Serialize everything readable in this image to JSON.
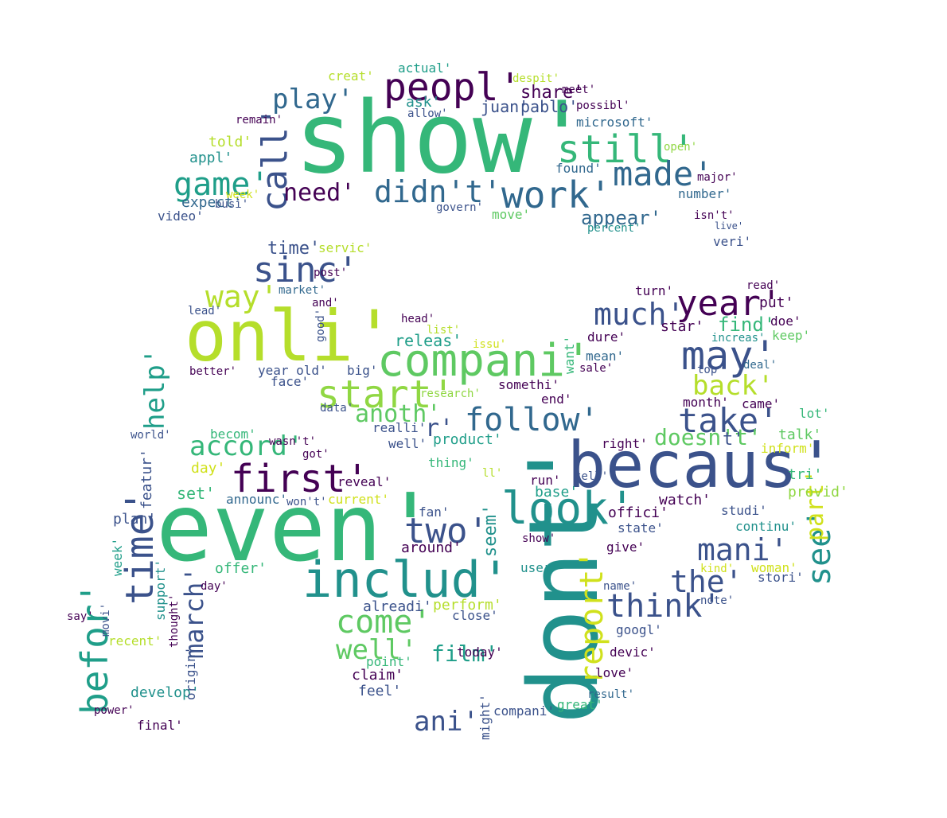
{
  "palette": {
    "dark_purple": "#440154",
    "indigo": "#3b528b",
    "blue": "#31688e",
    "teal": "#21918c",
    "teal_dark": "#1f9e89",
    "green": "#35b779",
    "green_light": "#5ec962",
    "lime": "#90d743",
    "yellow_green": "#b5de2b",
    "yellow": "#d0e11c",
    "background": "#ffffff"
  },
  "words": [
    {
      "text": "show'",
      "color": "#35b779"
    },
    {
      "text": "even'",
      "color": "#35b779"
    },
    {
      "text": "becaus'",
      "color": "#3b528b"
    },
    {
      "text": "dont'",
      "color": "#21918c"
    },
    {
      "text": "onli'",
      "color": "#b5de2b"
    },
    {
      "text": "compani'",
      "color": "#5ec962"
    },
    {
      "text": "includ'",
      "color": "#21918c"
    },
    {
      "text": "peopl'",
      "color": "#440154"
    },
    {
      "text": "still'",
      "color": "#35b779"
    },
    {
      "text": "work'",
      "color": "#31688e"
    },
    {
      "text": "made'",
      "color": "#31688e"
    },
    {
      "text": "call'",
      "color": "#3b528b"
    },
    {
      "text": "didn't'",
      "color": "#31688e"
    },
    {
      "text": "game'",
      "color": "#1f9e89"
    },
    {
      "text": "need'",
      "color": "#440154"
    },
    {
      "text": "play'",
      "color": "#31688e"
    },
    {
      "text": "sinc'",
      "color": "#3b528b"
    },
    {
      "text": "way'",
      "color": "#b5de2b"
    },
    {
      "text": "year'",
      "color": "#440154"
    },
    {
      "text": "may'",
      "color": "#3b528b"
    },
    {
      "text": "much'",
      "color": "#3b528b"
    },
    {
      "text": "start'",
      "color": "#90d743"
    },
    {
      "text": "follow'",
      "color": "#31688e"
    },
    {
      "text": "take'",
      "color": "#3b528b"
    },
    {
      "text": "back'",
      "color": "#b5de2b"
    },
    {
      "text": "first'",
      "color": "#440154"
    },
    {
      "text": "look'",
      "color": "#21918c"
    },
    {
      "text": "two'",
      "color": "#3b528b"
    },
    {
      "text": "mani'",
      "color": "#3b528b"
    },
    {
      "text": "see'",
      "color": "#21918c"
    },
    {
      "text": "the'",
      "color": "#3b528b"
    },
    {
      "text": "think'",
      "color": "#3b528b"
    },
    {
      "text": "report'",
      "color": "#d0e11c"
    },
    {
      "text": "come'",
      "color": "#5ec962"
    },
    {
      "text": "well'",
      "color": "#5ec962"
    },
    {
      "text": "film'",
      "color": "#1f9e89"
    },
    {
      "text": "time'",
      "color": "#3b528b"
    },
    {
      "text": "befor'",
      "color": "#1f9e89"
    },
    {
      "text": "help'",
      "color": "#1f9e89"
    },
    {
      "text": "accord'",
      "color": "#35b779"
    },
    {
      "text": "anoth'",
      "color": "#5ec962"
    },
    {
      "text": "ani'",
      "color": "#3b528b"
    },
    {
      "text": "march'",
      "color": "#3b528b"
    },
    {
      "text": "part'",
      "color": "#d0e11c"
    },
    {
      "text": "doesn't'",
      "color": "#5ec962"
    },
    {
      "text": "find'",
      "color": "#35b779"
    },
    {
      "text": "appear'",
      "color": "#31688e"
    },
    {
      "text": "share'",
      "color": "#440154"
    },
    {
      "text": "juan'",
      "color": "#3b528b"
    },
    {
      "text": "pablo'",
      "color": "#3b528b"
    },
    {
      "text": "actual'",
      "color": "#1f9e89"
    },
    {
      "text": "microsoft'",
      "color": "#31688e"
    },
    {
      "text": "told'",
      "color": "#b5de2b"
    },
    {
      "text": "appl'",
      "color": "#21918c"
    },
    {
      "text": "expect'",
      "color": "#31688e"
    },
    {
      "text": "busi'",
      "color": "#3b528b"
    },
    {
      "text": "video'",
      "color": "#3b528b"
    },
    {
      "text": "week'",
      "color": "#d0e11c"
    },
    {
      "text": "found'",
      "color": "#31688e"
    },
    {
      "text": "number'",
      "color": "#31688e"
    },
    {
      "text": "isn't'",
      "color": "#440154"
    },
    {
      "text": "veri'",
      "color": "#3b528b"
    },
    {
      "text": "live'",
      "color": "#3b528b"
    },
    {
      "text": "percent'",
      "color": "#21918c"
    },
    {
      "text": "move'",
      "color": "#5ec962"
    },
    {
      "text": "govern'",
      "color": "#3b528b"
    },
    {
      "text": "market'",
      "color": "#31688e"
    },
    {
      "text": "lead'",
      "color": "#3b528b"
    },
    {
      "text": "head'",
      "color": "#440154"
    },
    {
      "text": "releas'",
      "color": "#1f9e89"
    },
    {
      "text": "issu'",
      "color": "#d0e11c"
    },
    {
      "text": "year old'",
      "color": "#3b528b"
    },
    {
      "text": "research'",
      "color": "#90d743"
    },
    {
      "text": "realli'",
      "color": "#3b528b"
    },
    {
      "text": "product'",
      "color": "#1f9e89"
    },
    {
      "text": "thing'",
      "color": "#35b779"
    },
    {
      "text": "reveal'",
      "color": "#440154"
    },
    {
      "text": "current'",
      "color": "#d0e11c"
    },
    {
      "text": "announc'",
      "color": "#31688e"
    },
    {
      "text": "won't'",
      "color": "#3b528b"
    },
    {
      "text": "set'",
      "color": "#35b779"
    },
    {
      "text": "day'",
      "color": "#d0e11c"
    },
    {
      "text": "plan'",
      "color": "#3b528b"
    },
    {
      "text": "offer'",
      "color": "#35b779"
    },
    {
      "text": "support'",
      "color": "#21918c"
    },
    {
      "text": "week'",
      "color": "#1f9e89"
    },
    {
      "text": "recent'",
      "color": "#b5de2b"
    },
    {
      "text": "develop'",
      "color": "#21918c"
    },
    {
      "text": "final'",
      "color": "#440154"
    },
    {
      "text": "power'",
      "color": "#440154"
    },
    {
      "text": "movi'",
      "color": "#3b528b"
    },
    {
      "text": "origin'",
      "color": "#3b528b"
    },
    {
      "text": "thought'",
      "color": "#440154"
    },
    {
      "text": "around'",
      "color": "#440154"
    },
    {
      "text": "alreadi'",
      "color": "#3b528b"
    },
    {
      "text": "perform'",
      "color": "#b5de2b"
    },
    {
      "text": "close'",
      "color": "#3b528b"
    },
    {
      "text": "point'",
      "color": "#35b779"
    },
    {
      "text": "claim'",
      "color": "#440154"
    },
    {
      "text": "feel'",
      "color": "#3b528b"
    },
    {
      "text": "today'",
      "color": "#440154"
    },
    {
      "text": "compani'",
      "color": "#3b528b"
    },
    {
      "text": "great'",
      "color": "#35b779"
    },
    {
      "text": "result'",
      "color": "#31688e"
    },
    {
      "text": "love'",
      "color": "#440154"
    },
    {
      "text": "devic'",
      "color": "#440154"
    },
    {
      "text": "googl'",
      "color": "#3b528b"
    },
    {
      "text": "name'",
      "color": "#3b528b"
    },
    {
      "text": "stori'",
      "color": "#3b528b"
    },
    {
      "text": "woman'",
      "color": "#d0e11c"
    },
    {
      "text": "kind'",
      "color": "#d0e11c"
    },
    {
      "text": "note'",
      "color": "#3b528b"
    },
    {
      "text": "state'",
      "color": "#3b528b"
    },
    {
      "text": "continu'",
      "color": "#21918c"
    },
    {
      "text": "offici'",
      "color": "#440154"
    },
    {
      "text": "watch'",
      "color": "#440154"
    },
    {
      "text": "studi'",
      "color": "#3b528b"
    },
    {
      "text": "provid'",
      "color": "#90d743"
    },
    {
      "text": "tri'",
      "color": "#35b779"
    },
    {
      "text": "talk'",
      "color": "#5ec962"
    },
    {
      "text": "inform'",
      "color": "#d0e11c"
    },
    {
      "text": "came'",
      "color": "#440154"
    },
    {
      "text": "lot'",
      "color": "#35b779"
    },
    {
      "text": "month'",
      "color": "#440154"
    },
    {
      "text": "top'",
      "color": "#3b528b"
    },
    {
      "text": "deal'",
      "color": "#31688e"
    },
    {
      "text": "increas'",
      "color": "#21918c"
    },
    {
      "text": "keep'",
      "color": "#5ec962"
    },
    {
      "text": "doe'",
      "color": "#440154"
    },
    {
      "text": "star'",
      "color": "#440154"
    },
    {
      "text": "put'",
      "color": "#440154"
    },
    {
      "text": "read'",
      "color": "#440154"
    },
    {
      "text": "turn'",
      "color": "#440154"
    },
    {
      "text": "dure'",
      "color": "#440154"
    },
    {
      "text": "mean'",
      "color": "#31688e"
    },
    {
      "text": "sale'",
      "color": "#440154"
    },
    {
      "text": "end'",
      "color": "#440154"
    },
    {
      "text": "somethi'",
      "color": "#440154"
    },
    {
      "text": "want'",
      "color": "#35b779"
    },
    {
      "text": "run'",
      "color": "#440154"
    },
    {
      "text": "base'",
      "color": "#1f9e89"
    },
    {
      "text": "fan'",
      "color": "#3b528b"
    },
    {
      "text": "seem'",
      "color": "#21918c"
    },
    {
      "text": "user'",
      "color": "#21918c"
    },
    {
      "text": "give'",
      "color": "#440154"
    },
    {
      "text": "show'",
      "color": "#440154"
    },
    {
      "text": "right'",
      "color": "#440154"
    },
    {
      "text": "tell'",
      "color": "#3b528b"
    },
    {
      "text": "servic'",
      "color": "#b5de2b"
    },
    {
      "text": "post'",
      "color": "#440154"
    },
    {
      "text": "time'",
      "color": "#3b528b"
    },
    {
      "text": "list'",
      "color": "#b5de2b"
    },
    {
      "text": "big'",
      "color": "#3b528b"
    },
    {
      "text": "face'",
      "color": "#3b528b"
    },
    {
      "text": "better'",
      "color": "#440154"
    },
    {
      "text": "world'",
      "color": "#3b528b"
    },
    {
      "text": "becom'",
      "color": "#35b779"
    },
    {
      "text": "got'",
      "color": "#440154"
    },
    {
      "text": "wasn't'",
      "color": "#440154"
    },
    {
      "text": "featur'",
      "color": "#3b528b"
    },
    {
      "text": "data'",
      "color": "#3b528b"
    },
    {
      "text": "well'",
      "color": "#3b528b"
    },
    {
      "text": "remain'",
      "color": "#440154"
    },
    {
      "text": "creat'",
      "color": "#b5de2b"
    },
    {
      "text": "ask'",
      "color": "#21918c"
    },
    {
      "text": "allow'",
      "color": "#3b528b"
    },
    {
      "text": "possibl'",
      "color": "#440154"
    },
    {
      "text": "meet'",
      "color": "#440154"
    },
    {
      "text": "despit'",
      "color": "#b5de2b"
    },
    {
      "text": "open'",
      "color": "#90d743"
    },
    {
      "text": "major'",
      "color": "#440154"
    },
    {
      "text": "might'",
      "color": "#3b528b"
    },
    {
      "text": "say'",
      "color": "#440154"
    },
    {
      "text": "day'",
      "color": "#440154"
    },
    {
      "text": "and'",
      "color": "#440154"
    },
    {
      "text": "good'",
      "color": "#3b528b"
    },
    {
      "text": "ll'",
      "color": "#b5de2b"
    },
    {
      "text": "r'",
      "color": "#3b528b"
    },
    {
      "text": "t'",
      "color": "#3b528b"
    }
  ]
}
